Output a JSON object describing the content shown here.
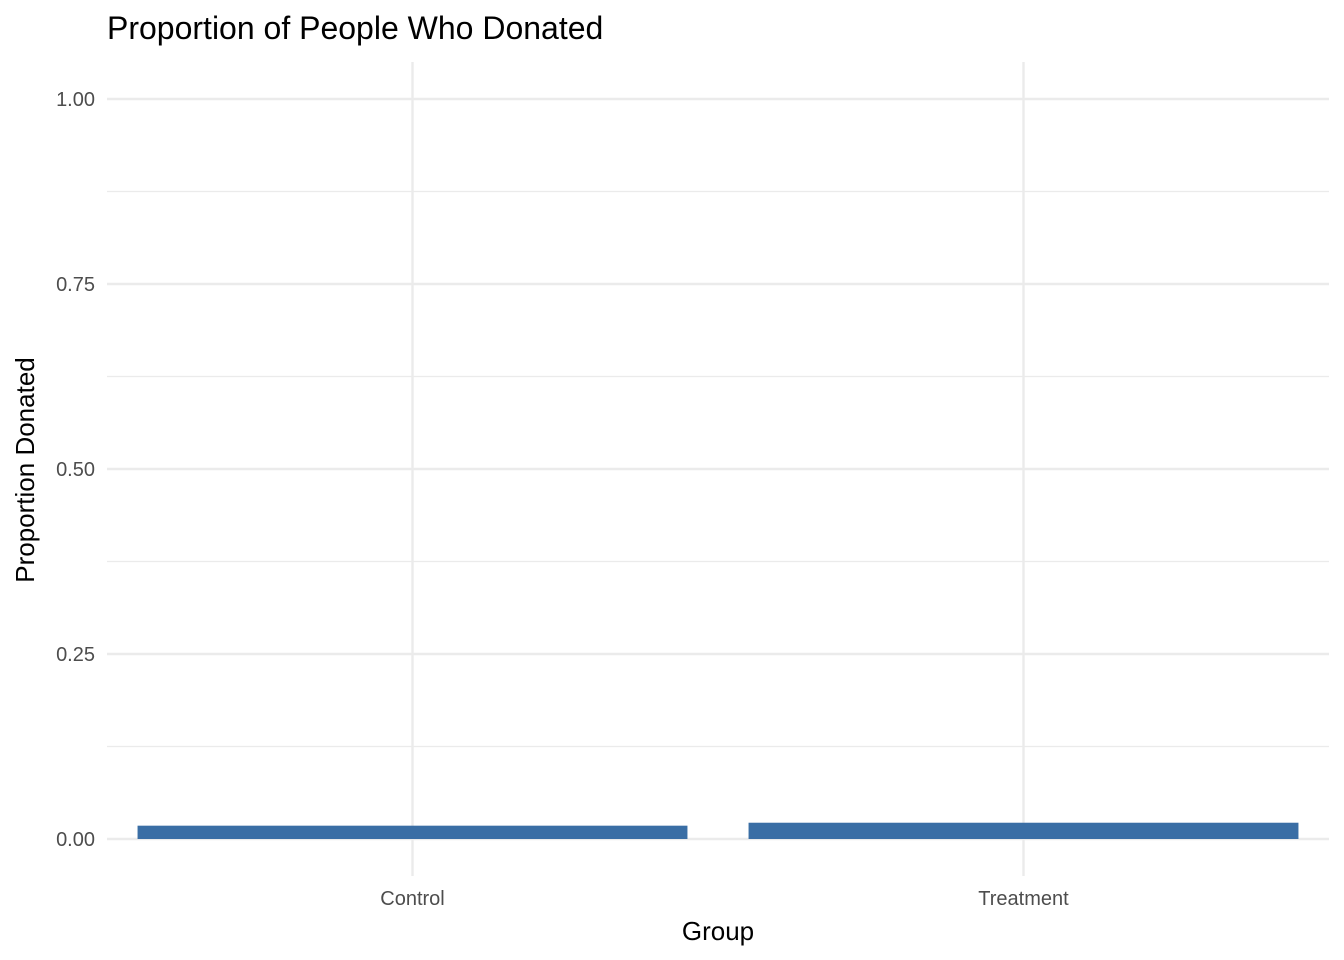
{
  "chart_data": {
    "type": "bar",
    "title": "Proportion of People Who Donated",
    "xlabel": "Group",
    "ylabel": "Proportion Donated",
    "categories": [
      "Control",
      "Treatment"
    ],
    "values": [
      0.018,
      0.022
    ],
    "ylim": [
      -0.05,
      1.05
    ],
    "yticks": [
      0,
      0.25,
      0.5,
      0.75,
      1
    ],
    "ytick_labels": [
      "0.00",
      "0.25",
      "0.50",
      "0.75",
      "1.00"
    ],
    "grid": true,
    "bar_color": "#3A6EA5"
  }
}
